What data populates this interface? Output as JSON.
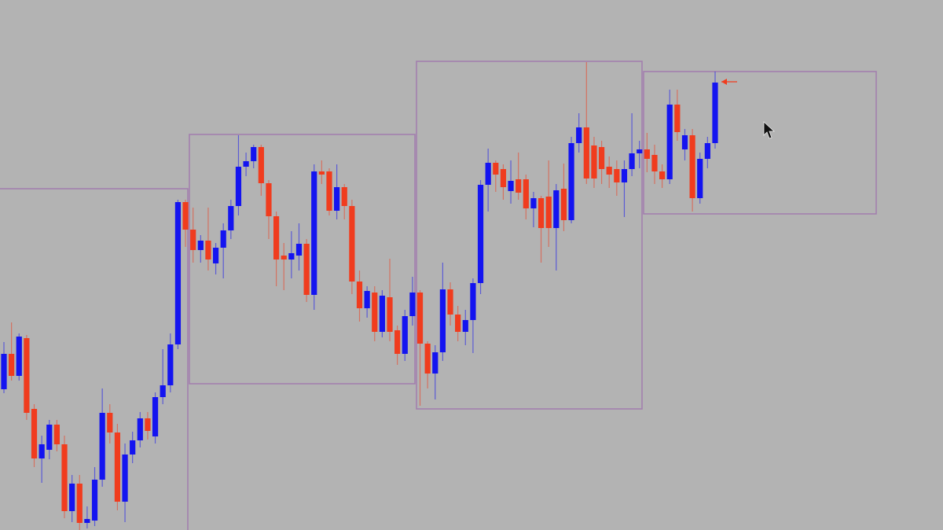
{
  "chart_data": {
    "type": "candlestick",
    "categories": [
      null,
      null,
      null,
      null,
      null,
      null,
      null,
      null,
      null,
      null,
      null,
      null,
      null,
      null,
      null,
      null,
      null,
      null,
      null,
      null,
      null,
      null,
      null,
      null,
      null,
      null,
      null,
      null,
      null,
      null,
      null,
      null,
      null,
      null,
      null,
      null,
      null,
      null,
      null,
      null,
      null,
      null,
      null,
      null,
      null,
      null,
      null,
      null,
      null,
      null,
      null,
      null,
      null,
      null,
      null,
      null,
      null,
      null,
      null,
      null,
      null,
      null,
      null,
      null,
      null,
      null,
      null,
      null,
      null,
      null,
      null,
      null,
      null,
      null,
      null,
      null,
      null,
      null,
      null,
      null,
      null,
      null,
      null,
      null,
      null,
      null,
      null,
      null,
      null,
      null,
      null,
      null,
      null,
      null,
      null
    ],
    "open": [
      179,
      224,
      196,
      244,
      154,
      91,
      102,
      134,
      109,
      24,
      59,
      9,
      12,
      64,
      149,
      124,
      36,
      96,
      114,
      142,
      119,
      169,
      184,
      236,
      417,
      382,
      356,
      368,
      339,
      359,
      381,
      412,
      462,
      469,
      487,
      441,
      399,
      349,
      344,
      349,
      364,
      299,
      456,
      456,
      406,
      436,
      412,
      316,
      282,
      302,
      252,
      296,
      254,
      224,
      272,
      302,
      237,
      199,
      226,
      306,
      274,
      252,
      267,
      314,
      439,
      467,
      459,
      431,
      446,
      446,
      409,
      422,
      424,
      384,
      434,
      394,
      492,
      512,
      489,
      487,
      462,
      459,
      442,
      459,
      479,
      484,
      477,
      456,
      446,
      541,
      484,
      502,
      422,
      472,
      492
    ],
    "high": [
      239,
      264,
      250,
      248,
      160,
      120,
      140,
      140,
      120,
      70,
      70,
      30,
      80,
      180,
      160,
      135,
      110,
      125,
      150,
      150,
      175,
      230,
      250,
      420,
      420,
      410,
      375,
      410,
      365,
      390,
      420,
      502,
      480,
      490,
      490,
      445,
      405,
      365,
      380,
      390,
      370,
      465,
      470,
      460,
      465,
      440,
      420,
      330,
      310,
      310,
      305,
      345,
      260,
      280,
      322,
      305,
      240,
      235,
      340,
      315,
      285,
      280,
      320,
      445,
      485,
      470,
      465,
      470,
      480,
      452,
      430,
      425,
      470,
      440,
      466,
      500,
      530,
      595,
      500,
      495,
      475,
      470,
      470,
      530,
      495,
      505,
      490,
      465,
      560,
      560,
      510,
      510,
      480,
      500,
      583
    ],
    "low": [
      174,
      190,
      190,
      140,
      80,
      60,
      90,
      100,
      15,
      10,
      0,
      2,
      5,
      55,
      110,
      25,
      10,
      85,
      105,
      115,
      110,
      160,
      175,
      230,
      360,
      340,
      340,
      330,
      325,
      320,
      370,
      400,
      450,
      460,
      425,
      370,
      310,
      305,
      320,
      330,
      290,
      280,
      440,
      400,
      395,
      395,
      300,
      265,
      270,
      240,
      245,
      240,
      210,
      215,
      260,
      158,
      180,
      166,
      215,
      260,
      240,
      235,
      225,
      300,
      405,
      430,
      420,
      415,
      420,
      395,
      385,
      340,
      360,
      330,
      380,
      390,
      480,
      440,
      435,
      440,
      435,
      425,
      398,
      450,
      460,
      455,
      440,
      435,
      440,
      495,
      470,
      405,
      415,
      460,
      485
    ],
    "close": [
      224,
      196,
      246,
      149,
      91,
      109,
      134,
      109,
      24,
      59,
      9,
      14,
      64,
      149,
      124,
      36,
      96,
      114,
      142,
      126,
      169,
      184,
      236,
      417,
      382,
      356,
      368,
      344,
      359,
      381,
      412,
      462,
      469,
      487,
      441,
      399,
      344,
      344,
      352,
      364,
      299,
      456,
      452,
      406,
      436,
      412,
      316,
      282,
      304,
      252,
      298,
      252,
      224,
      272,
      302,
      237,
      199,
      226,
      306,
      274,
      252,
      267,
      314,
      439,
      467,
      452,
      436,
      444,
      429,
      409,
      422,
      384,
      384,
      432,
      394,
      492,
      512,
      447,
      447,
      459,
      452,
      442,
      459,
      479,
      484,
      472,
      456,
      446,
      541,
      506,
      502,
      422,
      472,
      492,
      569
    ],
    "up_color": "#1414f0",
    "down_color": "#f03c1e",
    "ylim": [
      0,
      674
    ]
  }
}
